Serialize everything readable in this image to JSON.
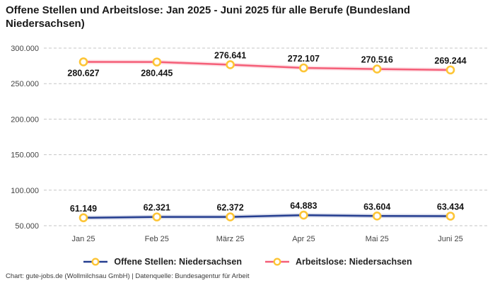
{
  "title": "Offene Stellen und Arbeitslose: Jan 2025 - Juni 2025 für alle Berufe (Bundesland Niedersachsen)",
  "footer": "Chart: gute-jobs.de (Wollmilchsau GmbH) | Datenquelle: Bundesagentur für Arbeit",
  "chart_data": {
    "type": "line",
    "title": "Offene Stellen und Arbeitslose: Jan 2025 - Juni 2025 für alle Berufe (Bundesland Niedersachsen)",
    "categories": [
      "Jan 25",
      "Feb 25",
      "März 25",
      "Apr 25",
      "Mai 25",
      "Juni 25"
    ],
    "series": [
      {
        "name": "Offene Stellen: Niedersachsen",
        "color": "#253e90",
        "values": [
          61149,
          62321,
          62372,
          64883,
          63604,
          63434
        ],
        "value_labels": [
          "61.149",
          "62.321",
          "62.372",
          "64.883",
          "63.604",
          "63.434"
        ],
        "label_sides": [
          "above",
          "above",
          "above",
          "above",
          "above",
          "above"
        ]
      },
      {
        "name": "Arbeitslose: Niedersachsen",
        "color": "#f55f78",
        "values": [
          280627,
          280445,
          276641,
          272107,
          270516,
          269244
        ],
        "value_labels": [
          "280.627",
          "280.445",
          "276.641",
          "272.107",
          "270.516",
          "269.244"
        ],
        "label_sides": [
          "below",
          "below",
          "above",
          "above",
          "above",
          "above"
        ]
      }
    ],
    "y_ticks": [
      {
        "value": 300000,
        "label": "300.000"
      },
      {
        "value": 250000,
        "label": "250.000"
      },
      {
        "value": 200000,
        "label": "200.000"
      },
      {
        "value": 150000,
        "label": "150.000"
      },
      {
        "value": 100000,
        "label": "100.000"
      },
      {
        "value": 50000,
        "label": "50.000"
      }
    ],
    "ylim": [
      50000,
      300000
    ],
    "grid": "horizontal-dashed",
    "legend_position": "bottom",
    "colors": {
      "marker": "#fdc536",
      "grid": "#c6c6c6"
    }
  }
}
